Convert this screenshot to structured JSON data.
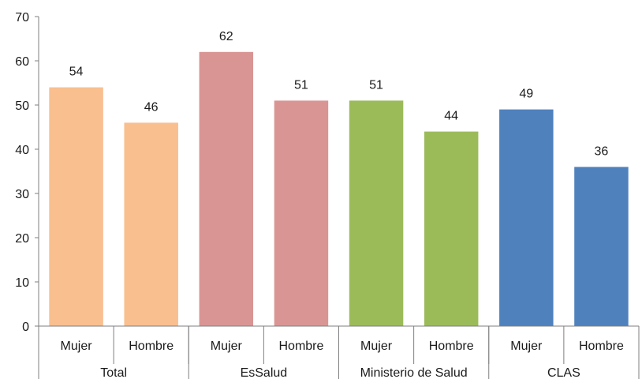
{
  "chart_data": {
    "type": "bar",
    "title": "",
    "xlabel": "",
    "ylabel": "",
    "ylim": [
      0,
      70
    ],
    "yticks": [
      0,
      10,
      20,
      30,
      40,
      50,
      60,
      70
    ],
    "grid": false,
    "legend": "none",
    "groups": [
      {
        "label": "Total",
        "color": "#F9BF8F",
        "bars": [
          {
            "category": "Mujer",
            "value": 54
          },
          {
            "category": "Hombre",
            "value": 46
          }
        ]
      },
      {
        "label": "EsSalud",
        "color": "#D99594",
        "bars": [
          {
            "category": "Mujer",
            "value": 62
          },
          {
            "category": "Hombre",
            "value": 51
          }
        ]
      },
      {
        "label": "Ministerio de Salud",
        "color": "#9BBB59",
        "bars": [
          {
            "category": "Mujer",
            "value": 51
          },
          {
            "category": "Hombre",
            "value": 44
          }
        ]
      },
      {
        "label": "CLAS",
        "color": "#4F81BD",
        "bars": [
          {
            "category": "Mujer",
            "value": 49
          },
          {
            "category": "Hombre",
            "value": 36
          }
        ]
      }
    ]
  }
}
